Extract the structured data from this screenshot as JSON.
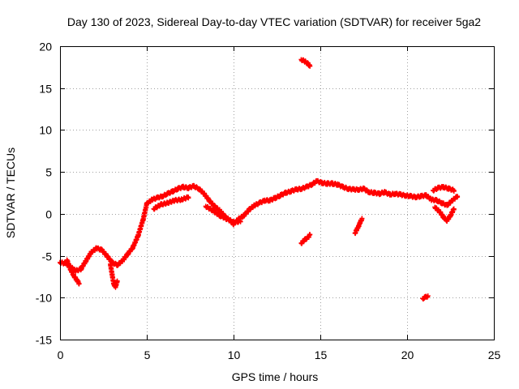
{
  "chart_data": {
    "type": "scatter",
    "title": "Day 130 of 2023, Sidereal Day-to-day VTEC variation (SDTVAR) for receiver 5ga2",
    "xlabel": "GPS time / hours",
    "ylabel": "SDTVAR / TECUs",
    "xlim": [
      0,
      25
    ],
    "ylim": [
      -15,
      20
    ],
    "xticks": [
      0,
      5,
      10,
      15,
      20,
      25
    ],
    "yticks": [
      -15,
      -10,
      -5,
      0,
      5,
      10,
      15,
      20
    ],
    "xtick_labels": [
      "0",
      "5",
      "10",
      "15",
      "20",
      "25"
    ],
    "ytick_labels": [
      "-15",
      "-10",
      "-5",
      "0",
      "5",
      "10",
      "15",
      "20"
    ],
    "grid": true,
    "marker": "+",
    "color": "#ff0000",
    "series": [
      {
        "name": "main",
        "points": [
          [
            0.0,
            -5.8
          ],
          [
            0.3,
            -5.9
          ],
          [
            0.6,
            -6.3
          ],
          [
            0.9,
            -6.8
          ],
          [
            1.2,
            -6.6
          ],
          [
            1.5,
            -5.6
          ],
          [
            1.8,
            -4.6
          ],
          [
            2.1,
            -4.1
          ],
          [
            2.4,
            -4.3
          ],
          [
            2.7,
            -5.0
          ],
          [
            3.0,
            -5.8
          ],
          [
            3.3,
            -6.1
          ],
          [
            3.6,
            -5.6
          ],
          [
            3.9,
            -4.8
          ],
          [
            4.2,
            -4.0
          ],
          [
            4.5,
            -2.6
          ],
          [
            4.8,
            -0.6
          ],
          [
            5.0,
            1.2
          ],
          [
            5.3,
            1.7
          ],
          [
            5.6,
            1.9
          ],
          [
            5.9,
            2.1
          ],
          [
            6.2,
            2.4
          ],
          [
            6.5,
            2.7
          ],
          [
            6.8,
            3.0
          ],
          [
            7.1,
            3.2
          ],
          [
            7.4,
            3.1
          ],
          [
            7.7,
            3.3
          ],
          [
            8.0,
            3.0
          ],
          [
            8.3,
            2.4
          ],
          [
            8.6,
            1.6
          ],
          [
            8.9,
            0.9
          ],
          [
            9.2,
            0.4
          ],
          [
            9.5,
            -0.3
          ],
          [
            9.8,
            -0.8
          ],
          [
            10.0,
            -1.2
          ],
          [
            10.3,
            -0.6
          ],
          [
            10.6,
            -0.2
          ],
          [
            10.9,
            0.5
          ],
          [
            11.2,
            1.0
          ],
          [
            11.5,
            1.3
          ],
          [
            11.8,
            1.6
          ],
          [
            12.1,
            1.6
          ],
          [
            12.4,
            1.9
          ],
          [
            12.7,
            2.2
          ],
          [
            13.0,
            2.5
          ],
          [
            13.3,
            2.7
          ],
          [
            13.6,
            2.9
          ],
          [
            13.9,
            3.0
          ],
          [
            14.2,
            3.2
          ],
          [
            14.5,
            3.5
          ],
          [
            14.8,
            3.9
          ],
          [
            15.1,
            3.7
          ],
          [
            15.4,
            3.6
          ],
          [
            15.7,
            3.6
          ],
          [
            16.0,
            3.5
          ],
          [
            16.3,
            3.2
          ],
          [
            16.6,
            3.0
          ],
          [
            16.9,
            2.9
          ],
          [
            17.2,
            2.9
          ],
          [
            17.5,
            3.0
          ],
          [
            17.8,
            2.6
          ],
          [
            18.1,
            2.5
          ],
          [
            18.4,
            2.4
          ],
          [
            18.7,
            2.6
          ],
          [
            19.0,
            2.3
          ],
          [
            19.3,
            2.4
          ],
          [
            19.6,
            2.3
          ],
          [
            19.9,
            2.2
          ],
          [
            20.2,
            2.1
          ],
          [
            20.5,
            2.0
          ],
          [
            20.8,
            2.1
          ],
          [
            21.1,
            2.2
          ],
          [
            21.4,
            1.7
          ],
          [
            21.7,
            1.6
          ],
          [
            22.0,
            1.3
          ],
          [
            22.3,
            1.0
          ],
          [
            22.6,
            1.6
          ],
          [
            22.9,
            2.1
          ]
        ]
      },
      {
        "name": "dip-0.4-1.1",
        "points": [
          [
            0.4,
            -5.5
          ],
          [
            0.6,
            -6.6
          ],
          [
            0.8,
            -7.4
          ],
          [
            1.0,
            -8.0
          ],
          [
            1.1,
            -8.3
          ]
        ]
      },
      {
        "name": "dip-3.1",
        "points": [
          [
            2.9,
            -6.0
          ],
          [
            3.0,
            -7.2
          ],
          [
            3.1,
            -8.4
          ],
          [
            3.2,
            -8.7
          ],
          [
            3.3,
            -8.0
          ]
        ]
      },
      {
        "name": "low-band-5.5-7.5",
        "points": [
          [
            5.4,
            0.6
          ],
          [
            5.8,
            1.1
          ],
          [
            6.2,
            1.3
          ],
          [
            6.6,
            1.6
          ],
          [
            7.0,
            1.7
          ],
          [
            7.4,
            2.0
          ]
        ]
      },
      {
        "name": "low-band-8.5-10.5",
        "points": [
          [
            8.4,
            0.9
          ],
          [
            8.8,
            0.4
          ],
          [
            9.2,
            -0.2
          ],
          [
            9.6,
            -0.6
          ],
          [
            10.0,
            -1.0
          ],
          [
            10.4,
            -0.9
          ]
        ]
      },
      {
        "name": "upper-21.5-22.8",
        "points": [
          [
            21.5,
            2.8
          ],
          [
            21.8,
            3.1
          ],
          [
            22.1,
            3.2
          ],
          [
            22.4,
            3.0
          ],
          [
            22.7,
            2.8
          ]
        ]
      },
      {
        "name": "lower-21.5-22.8",
        "points": [
          [
            21.6,
            0.8
          ],
          [
            21.9,
            0.2
          ],
          [
            22.1,
            -0.4
          ],
          [
            22.3,
            -0.8
          ],
          [
            22.5,
            -0.2
          ],
          [
            22.7,
            0.6
          ]
        ]
      },
      {
        "name": "isolated-13.9-14.4-high",
        "points": [
          [
            13.9,
            18.4
          ],
          [
            14.1,
            18.2
          ],
          [
            14.3,
            17.9
          ],
          [
            14.4,
            17.6
          ]
        ]
      },
      {
        "name": "isolated-13.9-14.4-low",
        "points": [
          [
            13.9,
            -3.5
          ],
          [
            14.1,
            -3.1
          ],
          [
            14.3,
            -2.8
          ],
          [
            14.4,
            -2.5
          ]
        ]
      },
      {
        "name": "isolated-17.0-17.4",
        "points": [
          [
            17.0,
            -2.3
          ],
          [
            17.1,
            -1.9
          ],
          [
            17.2,
            -1.5
          ],
          [
            17.3,
            -1.0
          ],
          [
            17.4,
            -0.6
          ]
        ]
      },
      {
        "name": "isolated-20.9-21.2",
        "points": [
          [
            20.9,
            -10.1
          ],
          [
            21.0,
            -10.0
          ],
          [
            21.1,
            -9.9
          ],
          [
            21.2,
            -9.8
          ]
        ]
      }
    ]
  }
}
